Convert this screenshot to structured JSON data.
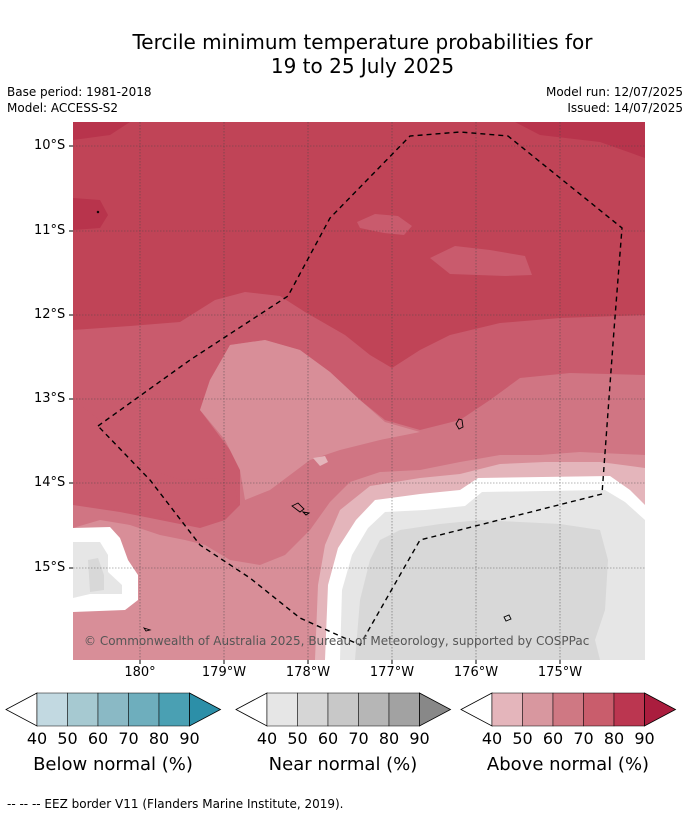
{
  "title": {
    "line1": "Tercile minimum temperature probabilities for",
    "line2": "19 to 25 July 2025"
  },
  "meta": {
    "base_period": "Base period: 1981-2018",
    "model": "Model: ACCESS-S2",
    "model_run": "Model run: 12/07/2025",
    "issued": "Issued: 14/07/2025"
  },
  "map": {
    "lat_labels": [
      "10°S",
      "11°S",
      "12°S",
      "13°S",
      "14°S",
      "15°S"
    ],
    "lon_labels": [
      "180°",
      "179°W",
      "178°W",
      "177°W",
      "176°W",
      "175°W"
    ],
    "copyright": "© Commonwealth of Australia 2025, Bureau of Meteorology, supported by COSPPac",
    "colors": {
      "above_80": "#c04457",
      "above_70": "#c95b6d",
      "above_60": "#d07583",
      "above_50": "#d88e98",
      "above_40": "#e4b5bb",
      "near_40": "#e6e6e6",
      "near_50": "#d8d8d8",
      "gap": "#ffffff"
    }
  },
  "colorbars": [
    {
      "title": "Below normal (%)",
      "ticks": [
        "40",
        "50",
        "60",
        "70",
        "80",
        "90"
      ],
      "colors": [
        "#c2d9e1",
        "#a6c9d1",
        "#8ab9c5",
        "#6eaebd",
        "#4aa0b3",
        "#2c8fa8"
      ]
    },
    {
      "title": "Near normal (%)",
      "ticks": [
        "40",
        "50",
        "60",
        "70",
        "80",
        "90"
      ],
      "colors": [
        "#e6e6e6",
        "#d6d6d6",
        "#c8c8c8",
        "#b6b6b6",
        "#a2a2a2",
        "#888888"
      ]
    },
    {
      "title": "Above normal (%)",
      "ticks": [
        "40",
        "50",
        "60",
        "70",
        "80",
        "90"
      ],
      "colors": [
        "#e4b5bb",
        "#d8979f",
        "#cf7883",
        "#c95d6c",
        "#bb3650",
        "#aa1d3e"
      ]
    }
  ],
  "footer": "--  --  -- EEZ border V11 (Flanders Marine Institute, 2019)."
}
